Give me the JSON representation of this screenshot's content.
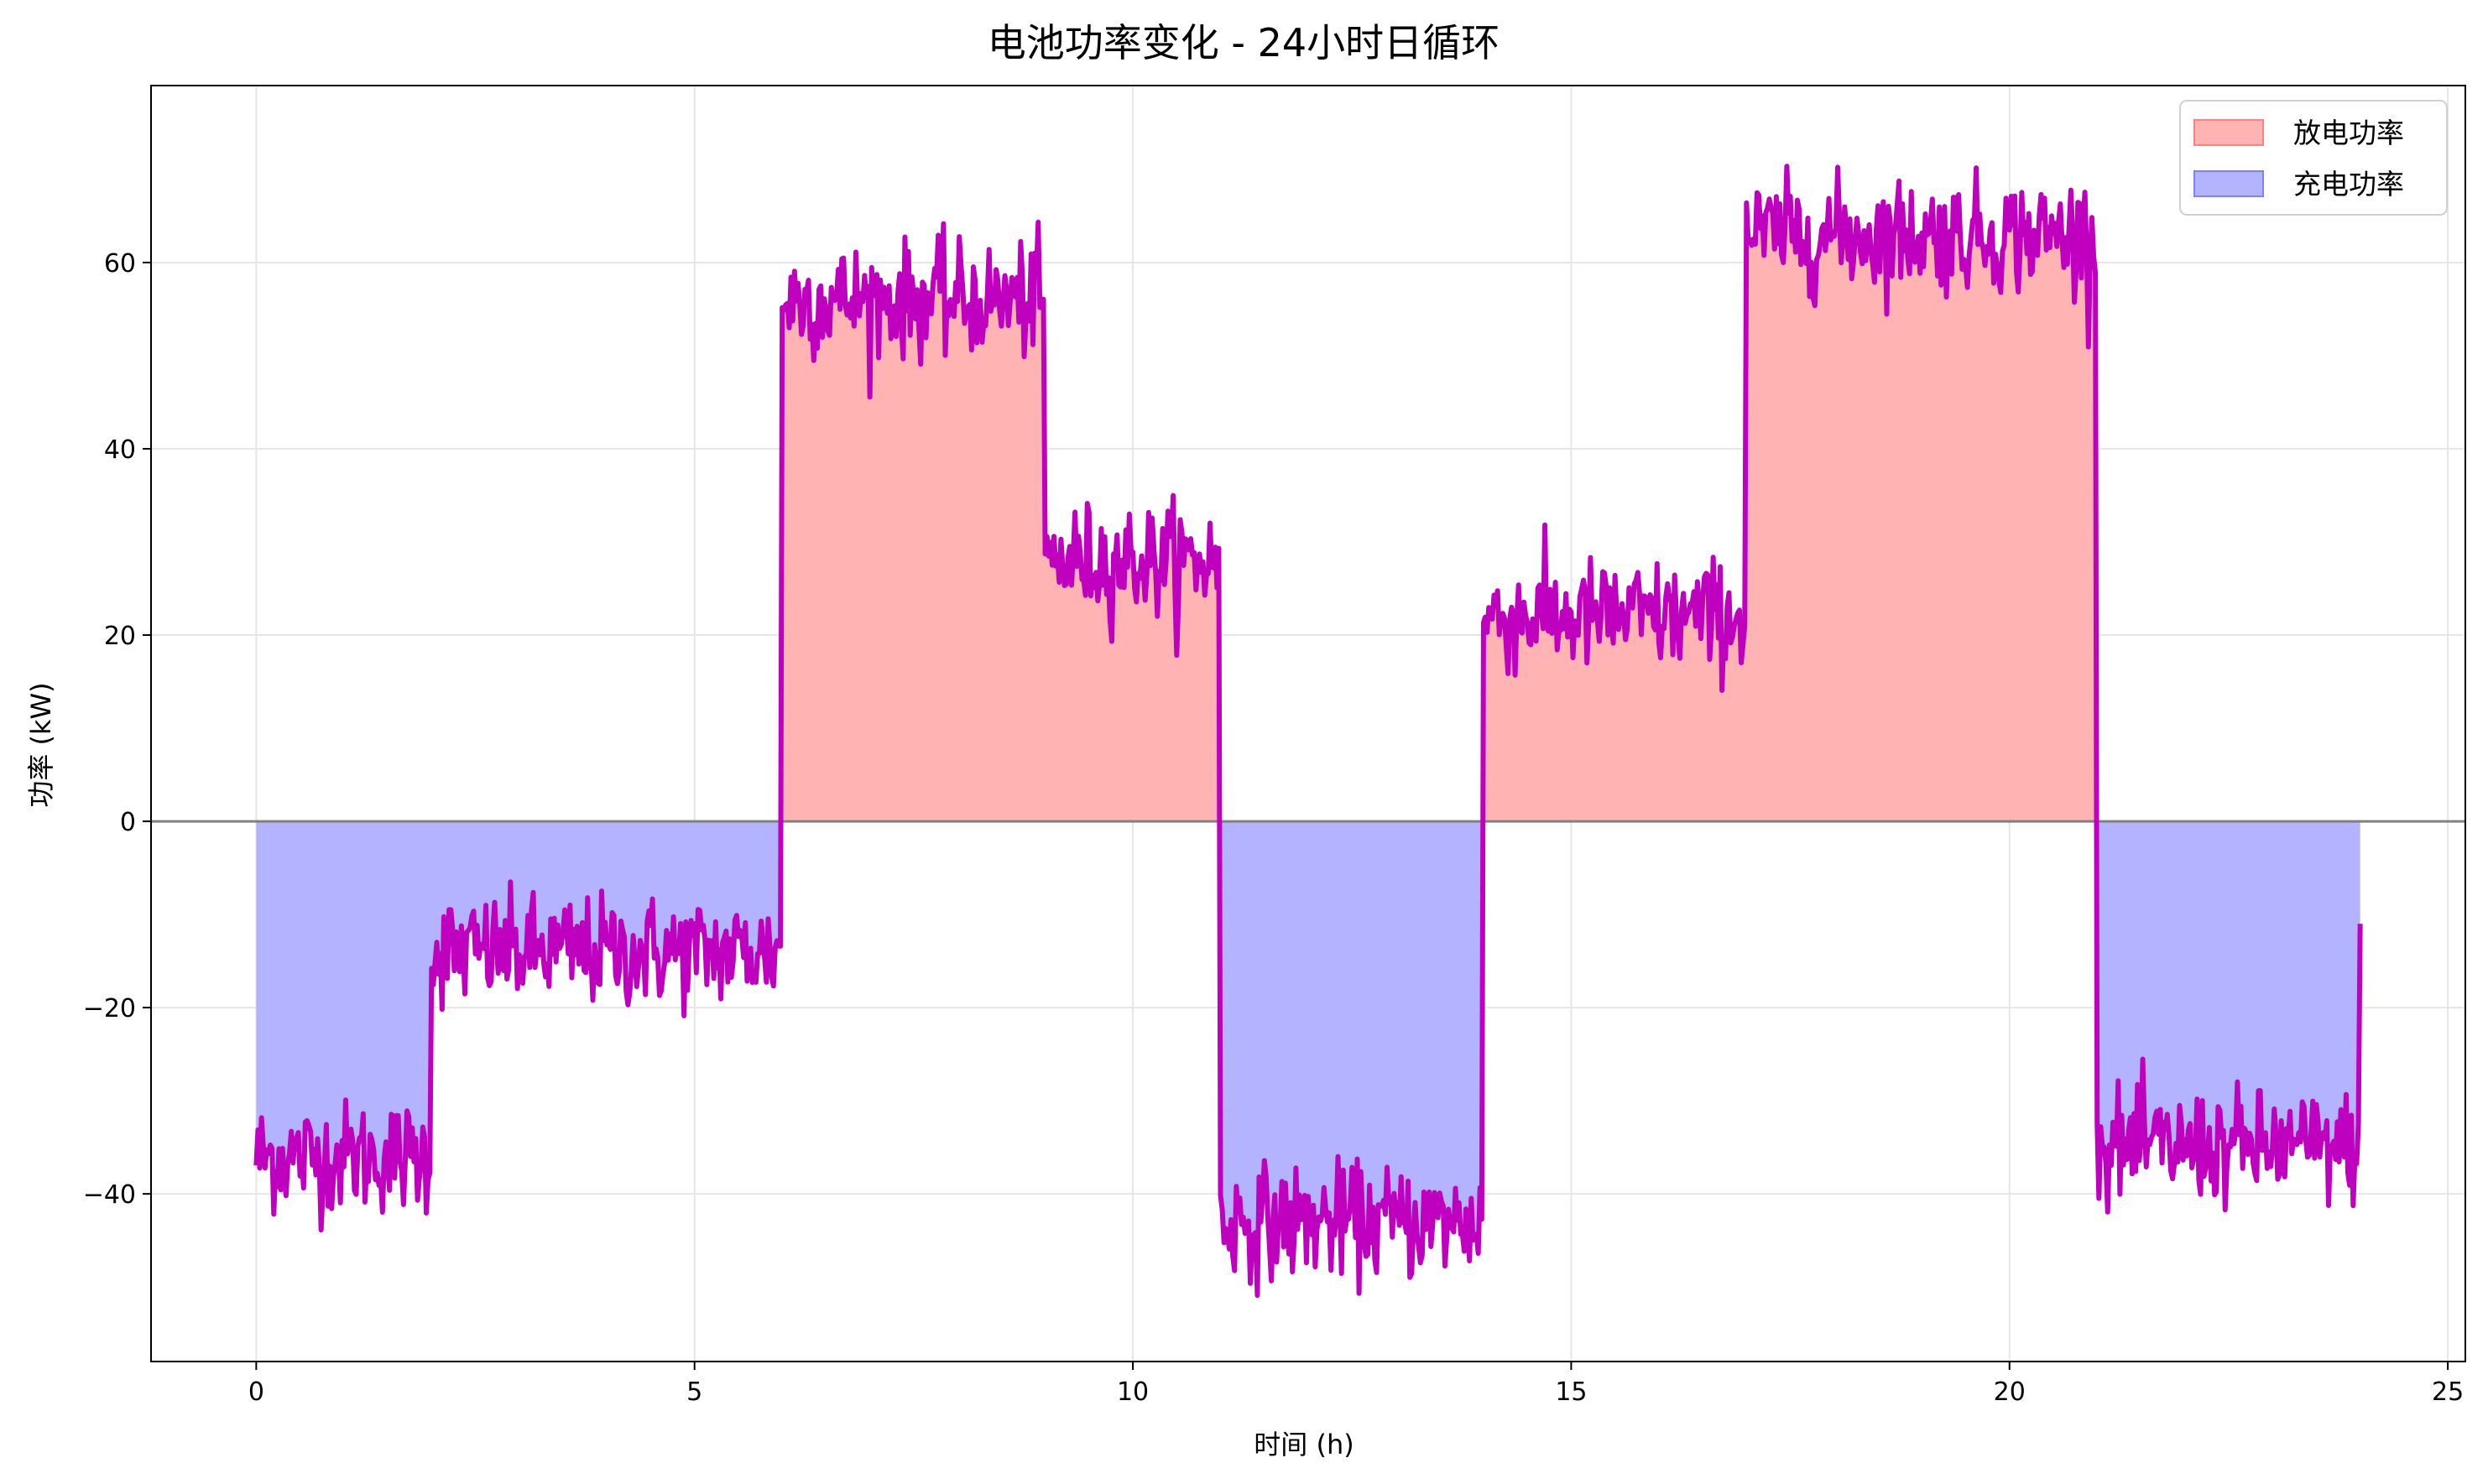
{
  "chart_data": {
    "type": "area",
    "title": "电池功率变化 - 24小时日循环",
    "xlabel": "时间 (h)",
    "ylabel": "功率 (kW)",
    "xlim": [
      -1.2,
      25.2
    ],
    "ylim": [
      -58,
      79
    ],
    "xticks": [
      0,
      5,
      10,
      15,
      20,
      25
    ],
    "yticks": [
      -40,
      -20,
      0,
      20,
      40,
      60
    ],
    "grid": true,
    "legend_position": "top-right",
    "zero_line": 0,
    "colors": {
      "line": "#bf00bf",
      "discharge_fill": "#ffb3b3",
      "discharge_edge": "#ff8080",
      "charge_fill": "#b3b3ff",
      "charge_edge": "#8080ff",
      "zero_line": "#808080",
      "grid": "#e6e6e6"
    },
    "series": [
      {
        "name": "放电功率",
        "kind": "fill_positive",
        "color": "#ffb3b3"
      },
      {
        "name": "充电功率",
        "kind": "fill_negative",
        "color": "#b3b3ff"
      }
    ],
    "segments": [
      {
        "x_start": 0,
        "x_end": 2,
        "mean": -36,
        "noise": 3
      },
      {
        "x_start": 2,
        "x_end": 6,
        "mean": -14,
        "noise": 3
      },
      {
        "x_start": 6,
        "x_end": 9,
        "mean": 56,
        "noise": 3
      },
      {
        "x_start": 9,
        "x_end": 11,
        "mean": 28,
        "noise": 3
      },
      {
        "x_start": 11,
        "x_end": 14,
        "mean": -43,
        "noise": 3
      },
      {
        "x_start": 14,
        "x_end": 17,
        "mean": 22,
        "noise": 3
      },
      {
        "x_start": 17,
        "x_end": 21,
        "mean": 63,
        "noise": 3
      },
      {
        "x_start": 21,
        "x_end": 24,
        "mean": -35,
        "noise": 3
      }
    ],
    "end_point": {
      "x": 24,
      "y": -11
    }
  }
}
